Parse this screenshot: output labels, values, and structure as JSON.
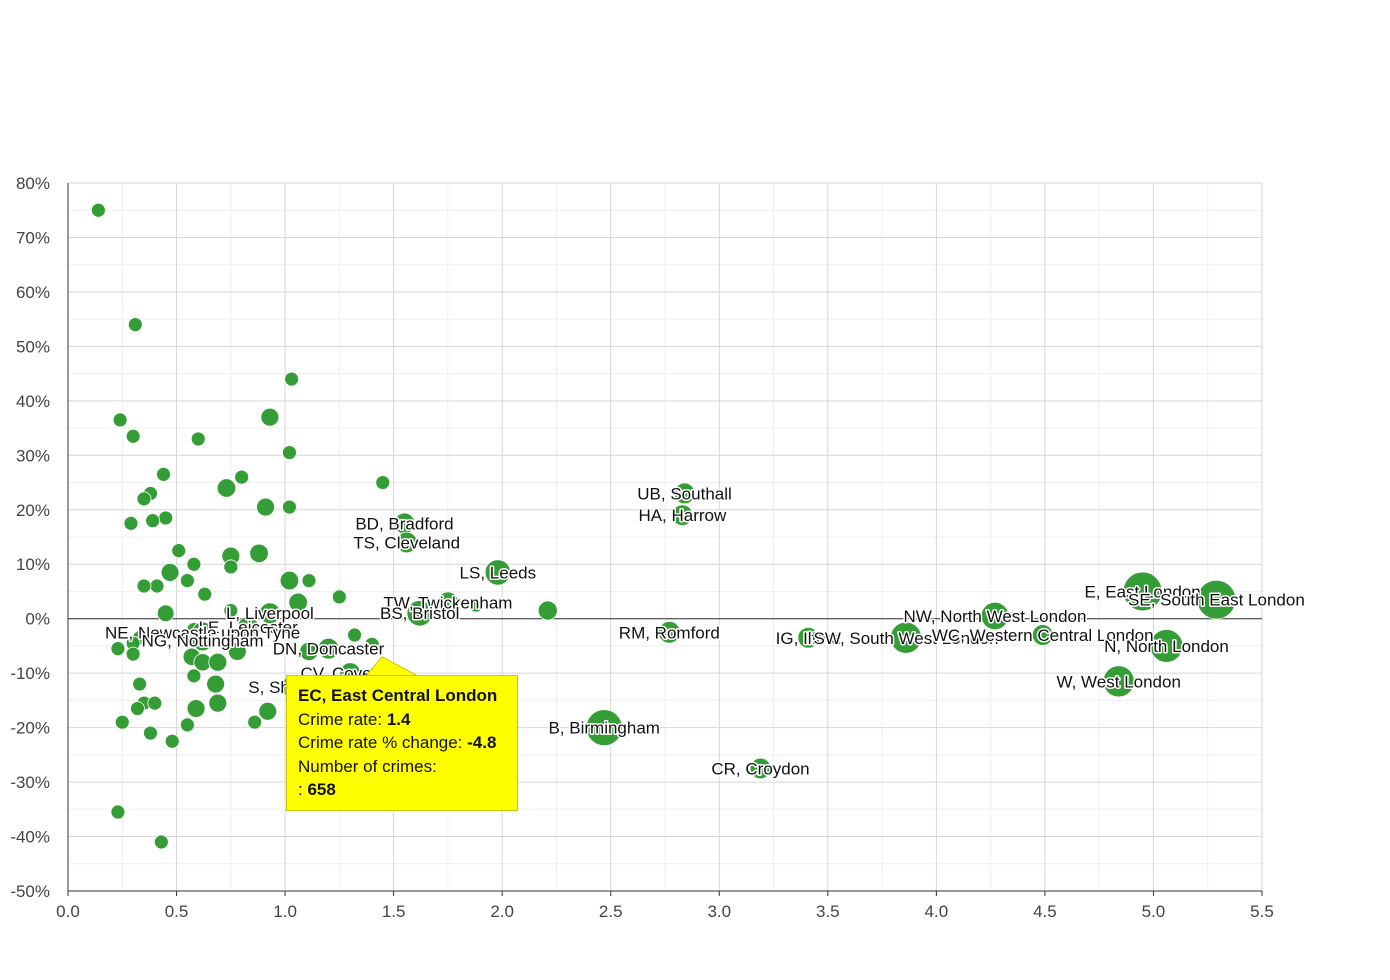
{
  "chart_data": {
    "type": "scatter",
    "title": "",
    "xlabel": "",
    "ylabel": "",
    "xlim": [
      0,
      5.5
    ],
    "ylim": [
      -50,
      80
    ],
    "x_ticks": [
      "0.0",
      "0.5",
      "1.0",
      "1.5",
      "2.0",
      "2.5",
      "3.0",
      "3.5",
      "4.0",
      "4.5",
      "5.0",
      "5.5"
    ],
    "y_ticks": [
      "80%",
      "70%",
      "60%",
      "50%",
      "40%",
      "30%",
      "20%",
      "10%",
      "0%",
      "-10%",
      "-20%",
      "-30%",
      "-40%",
      "-50%"
    ],
    "grid": true,
    "colors": {
      "bubble": "#2e9a2e",
      "bubble_stroke": "#ffffff",
      "tooltip_bg": "#ffff00"
    },
    "labeled_points": [
      {
        "label": "UB, Southall",
        "x": 2.84,
        "y": 23,
        "size": 2
      },
      {
        "label": "HA, Harrow",
        "x": 2.83,
        "y": 19,
        "size": 2
      },
      {
        "label": "BD, Bradford",
        "x": 1.55,
        "y": 17.5,
        "size": 2
      },
      {
        "label": "TS, Cleveland",
        "x": 1.56,
        "y": 14,
        "size": 2
      },
      {
        "label": "LS, Leeds",
        "x": 1.98,
        "y": 8.5,
        "size": 3
      },
      {
        "label": "TW, Twickenham",
        "x": 1.75,
        "y": 3,
        "size": 2
      },
      {
        "label": "BS, Bristol",
        "x": 1.62,
        "y": 1,
        "size": 3
      },
      {
        "label": "L, Liverpool",
        "x": 0.93,
        "y": 1,
        "size": 2
      },
      {
        "label": "LE, Leicester",
        "x": 0.83,
        "y": -1.5,
        "size": 2
      },
      {
        "label": "NE, Newcastle upon Tyne",
        "x": 0.62,
        "y": -2.5,
        "size": 2
      },
      {
        "label": "NG, Nottingham",
        "x": 0.62,
        "y": -4,
        "size": 2
      },
      {
        "label": "DN, Doncaster",
        "x": 1.2,
        "y": -5.5,
        "size": 2
      },
      {
        "label": "CV, Coventry",
        "x": 1.3,
        "y": -10,
        "size": 2
      },
      {
        "label": "S, Sheffield",
        "x": 1.03,
        "y": -12.5,
        "size": 2
      },
      {
        "label": "EC, East Central London",
        "x": 1.4,
        "y": -4.8,
        "size": 1.2
      },
      {
        "label": "B, Birmingham",
        "x": 2.47,
        "y": -20,
        "size": 6
      },
      {
        "label": "CR, Croydon",
        "x": 3.19,
        "y": -27.5,
        "size": 2
      },
      {
        "label": "RM, Romford",
        "x": 2.77,
        "y": -2.5,
        "size": 2.2
      },
      {
        "label": "IG, Ilford",
        "x": 3.41,
        "y": -3.5,
        "size": 2
      },
      {
        "label": "SW, South West London",
        "x": 3.86,
        "y": -3.5,
        "size": 4.5
      },
      {
        "label": "NW, North West London",
        "x": 4.27,
        "y": 0.5,
        "size": 3.5
      },
      {
        "label": "WC, Western Central London",
        "x": 4.49,
        "y": -3,
        "size": 2
      },
      {
        "label": "E, East London",
        "x": 4.95,
        "y": 5,
        "size": 7
      },
      {
        "label": "SE, South East London",
        "x": 5.29,
        "y": 3.5,
        "size": 7
      },
      {
        "label": "N, North London",
        "x": 5.06,
        "y": -5,
        "size": 5
      },
      {
        "label": "W, West London",
        "x": 4.84,
        "y": -11.5,
        "size": 4.5
      }
    ],
    "points": [
      {
        "x": 0.14,
        "y": 75
      },
      {
        "x": 0.31,
        "y": 54
      },
      {
        "x": 0.24,
        "y": 36.5
      },
      {
        "x": 0.3,
        "y": 33.5
      },
      {
        "x": 0.6,
        "y": 33
      },
      {
        "x": 0.93,
        "y": 37,
        "size": 1.5
      },
      {
        "x": 1.03,
        "y": 44
      },
      {
        "x": 1.02,
        "y": 30.5
      },
      {
        "x": 0.44,
        "y": 26.5
      },
      {
        "x": 0.8,
        "y": 26
      },
      {
        "x": 0.73,
        "y": 24,
        "size": 1.6
      },
      {
        "x": 0.38,
        "y": 23
      },
      {
        "x": 0.35,
        "y": 22
      },
      {
        "x": 0.91,
        "y": 20.5,
        "size": 1.5
      },
      {
        "x": 1.02,
        "y": 20.5
      },
      {
        "x": 1.45,
        "y": 25
      },
      {
        "x": 0.45,
        "y": 18.5
      },
      {
        "x": 0.39,
        "y": 18
      },
      {
        "x": 0.29,
        "y": 17.5
      },
      {
        "x": 0.51,
        "y": 12.5
      },
      {
        "x": 0.88,
        "y": 12,
        "size": 1.6
      },
      {
        "x": 0.75,
        "y": 11.5,
        "size": 1.5
      },
      {
        "x": 0.58,
        "y": 10
      },
      {
        "x": 0.47,
        "y": 8.5,
        "size": 1.5
      },
      {
        "x": 0.75,
        "y": 9.5
      },
      {
        "x": 0.55,
        "y": 7
      },
      {
        "x": 1.02,
        "y": 7,
        "size": 1.6
      },
      {
        "x": 1.11,
        "y": 7
      },
      {
        "x": 0.41,
        "y": 6
      },
      {
        "x": 0.35,
        "y": 6
      },
      {
        "x": 0.63,
        "y": 4.5
      },
      {
        "x": 1.25,
        "y": 4
      },
      {
        "x": 1.06,
        "y": 3,
        "size": 1.6
      },
      {
        "x": 1.88,
        "y": 2.5
      },
      {
        "x": 2.21,
        "y": 1.5,
        "size": 1.7
      },
      {
        "x": 0.45,
        "y": 1,
        "size": 1.3
      },
      {
        "x": 0.75,
        "y": 1.5
      },
      {
        "x": 0.58,
        "y": -2
      },
      {
        "x": 0.33,
        "y": -3.5
      },
      {
        "x": 0.3,
        "y": -4.5
      },
      {
        "x": 0.23,
        "y": -5.5
      },
      {
        "x": 0.3,
        "y": -6.5
      },
      {
        "x": 0.78,
        "y": -6,
        "size": 1.5
      },
      {
        "x": 0.57,
        "y": -7,
        "size": 1.4
      },
      {
        "x": 0.62,
        "y": -8,
        "size": 1.4
      },
      {
        "x": 0.69,
        "y": -8,
        "size": 1.5
      },
      {
        "x": 1.11,
        "y": -6,
        "size": 1.6
      },
      {
        "x": 1.32,
        "y": -3
      },
      {
        "x": 1.42,
        "y": -10
      },
      {
        "x": 0.58,
        "y": -10.5
      },
      {
        "x": 0.68,
        "y": -12,
        "size": 1.5
      },
      {
        "x": 0.33,
        "y": -12
      },
      {
        "x": 0.35,
        "y": -15.5
      },
      {
        "x": 0.4,
        "y": -15.5
      },
      {
        "x": 0.32,
        "y": -16.5
      },
      {
        "x": 0.59,
        "y": -16.5,
        "size": 1.5
      },
      {
        "x": 0.69,
        "y": -15.5,
        "size": 1.5
      },
      {
        "x": 0.92,
        "y": -17,
        "size": 1.5
      },
      {
        "x": 0.25,
        "y": -19
      },
      {
        "x": 0.55,
        "y": -19.5
      },
      {
        "x": 0.86,
        "y": -19
      },
      {
        "x": 0.38,
        "y": -21
      },
      {
        "x": 0.48,
        "y": -22.5
      },
      {
        "x": 0.23,
        "y": -35.5
      },
      {
        "x": 0.43,
        "y": -41
      }
    ],
    "tooltip": {
      "title": "EC, East Central London",
      "rate_label": "Crime rate:",
      "rate_value": "1.4",
      "change_label": "Crime rate % change:",
      "change_value": "-4.8",
      "count_label": "Number of crimes:",
      "count_prefix": ":",
      "count_value": "658"
    }
  }
}
